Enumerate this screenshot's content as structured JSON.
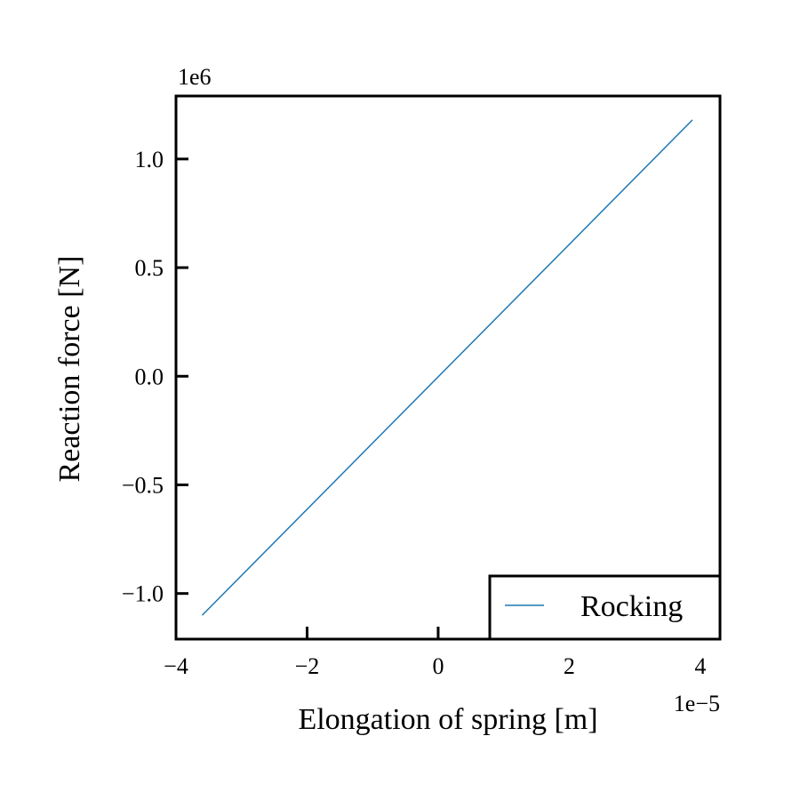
{
  "chart_data": {
    "type": "line",
    "title": "",
    "xlabel": "Elongation of spring [m]",
    "ylabel": "Reaction force [N]",
    "x_offset_label": "1e−5",
    "y_offset_label": "1e6",
    "xlim": [
      -4.0,
      4.3
    ],
    "ylim": [
      -1.21,
      1.29
    ],
    "xticks": [
      {
        "value": -4,
        "label": "−4"
      },
      {
        "value": -2,
        "label": "−2"
      },
      {
        "value": 0,
        "label": "0"
      },
      {
        "value": 2,
        "label": "2"
      },
      {
        "value": 4,
        "label": "4"
      }
    ],
    "yticks": [
      {
        "value": -1.0,
        "label": "−1.0"
      },
      {
        "value": -0.5,
        "label": "−0.5"
      },
      {
        "value": 0.0,
        "label": "0.0"
      },
      {
        "value": 0.5,
        "label": "0.5"
      },
      {
        "value": 1.0,
        "label": "1.0"
      }
    ],
    "grid": false,
    "legend_position": "lower-right",
    "series": [
      {
        "name": "Rocking",
        "color": "#1f77b4",
        "x": [
          -3.6,
          3.88
        ],
        "y": [
          -1.1,
          1.18
        ]
      }
    ]
  }
}
